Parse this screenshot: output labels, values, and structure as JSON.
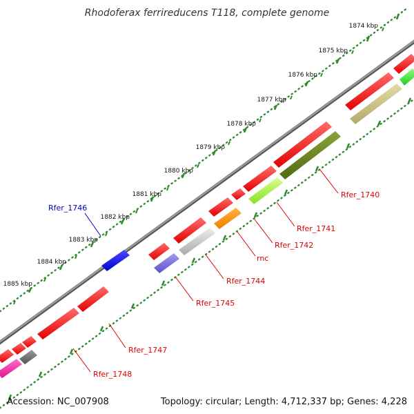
{
  "title": "Rhodoferax ferrireducens T118, complete genome",
  "accession": "Accession: NC_007908",
  "summary": "Topology: circular; Length: 4,712,337 bp; Genes: 4,228",
  "scale_labels": [
    "1874 kbp",
    "1875 kbp",
    "1876 kbp",
    "1877 kbp",
    "1878 kbp",
    "1879 kbp",
    "1880 kbp",
    "1881 kbp",
    "1882 kbp",
    "1883 kbp",
    "1884 kbp",
    "1885 kbp"
  ],
  "gene_labels": [
    {
      "text": "Rfer_1740",
      "color": "#e00000"
    },
    {
      "text": "Rfer_1741",
      "color": "#e00000"
    },
    {
      "text": "Rfer_1742",
      "color": "#e00000"
    },
    {
      "text": "rnc",
      "color": "#e00000"
    },
    {
      "text": "Rfer_1744",
      "color": "#e00000"
    },
    {
      "text": "Rfer_1745",
      "color": "#e00000"
    },
    {
      "text": "Rfer_1746",
      "color": "#0000c0"
    },
    {
      "text": "Rfer_1747",
      "color": "#e00000"
    },
    {
      "text": "Rfer_1748",
      "color": "#e00000"
    }
  ],
  "colors": {
    "backbone": "#888888",
    "scale_dots": "#2e8b2e",
    "gene_red": "#ff0000",
    "gene_blue": "#0000ff"
  }
}
